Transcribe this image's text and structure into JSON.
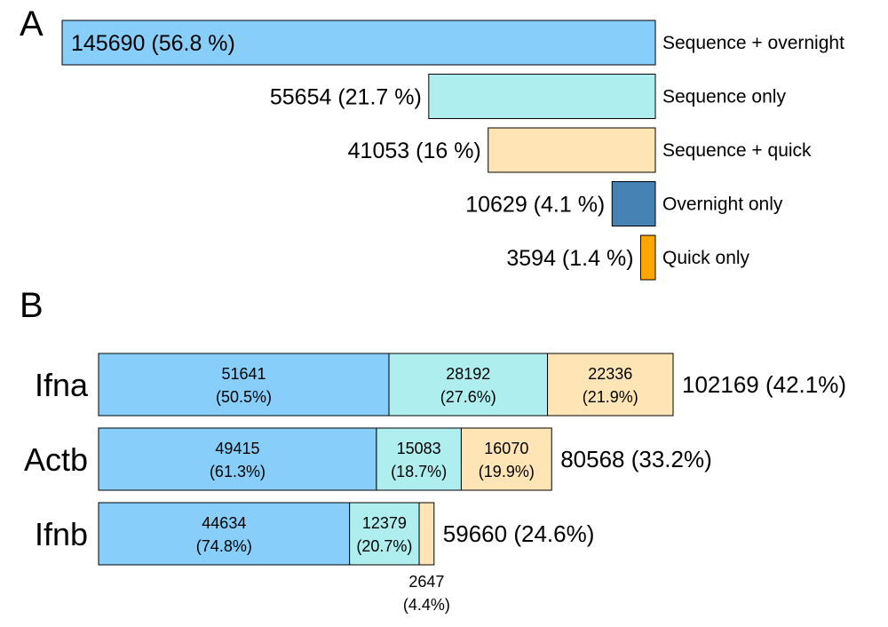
{
  "chart_data": [
    {
      "panel_label": "A",
      "type": "bar",
      "orientation": "horizontal",
      "alignment": "right",
      "bars": [
        {
          "category": "Sequence + overnight",
          "value": 145690,
          "value_label": "145690 (56.8 %)",
          "color": "#87CEFA"
        },
        {
          "category": "Sequence only",
          "value": 55654,
          "value_label": "55654 (21.7 %)",
          "color": "#AFEEEE"
        },
        {
          "category": "Sequence + quick",
          "value": 41053,
          "value_label": "41053 (16 %)",
          "color": "#FFE4B5"
        },
        {
          "category": "Overnight only",
          "value": 10629,
          "value_label": "10629 (4.1 %)",
          "color": "#4682B4"
        },
        {
          "category": "Quick only",
          "value": 3594,
          "value_label": "3594 (1.4 %)",
          "color": "#FFA500"
        }
      ]
    },
    {
      "panel_label": "B",
      "type": "bar",
      "orientation": "horizontal",
      "stacked": true,
      "segment_colors": [
        "#87CEFA",
        "#AFEEEE",
        "#FFE4B5"
      ],
      "rows": [
        {
          "category": "Ifna",
          "total_label": "102169 (42.1%)",
          "segments": [
            {
              "value": 51641,
              "value_label": "51641",
              "pct_label": "(50.5%)"
            },
            {
              "value": 28192,
              "value_label": "28192",
              "pct_label": "(27.6%)"
            },
            {
              "value": 22336,
              "value_label": "22336",
              "pct_label": "(21.9%)"
            }
          ]
        },
        {
          "category": "Actb",
          "total_label": "80568 (33.2%)",
          "segments": [
            {
              "value": 49415,
              "value_label": "49415",
              "pct_label": "(61.3%)"
            },
            {
              "value": 15083,
              "value_label": "15083",
              "pct_label": "(18.7%)"
            },
            {
              "value": 16070,
              "value_label": "16070",
              "pct_label": "(19.9%)"
            }
          ]
        },
        {
          "category": "Ifnb",
          "total_label": "59660 (24.6%)",
          "segments": [
            {
              "value": 44634,
              "value_label": "44634",
              "pct_label": "(74.8%)"
            },
            {
              "value": 12379,
              "value_label": "12379",
              "pct_label": "(20.7%)"
            },
            {
              "value": 2647,
              "value_label": "2647",
              "pct_label": "(4.4%)"
            }
          ]
        }
      ]
    }
  ]
}
